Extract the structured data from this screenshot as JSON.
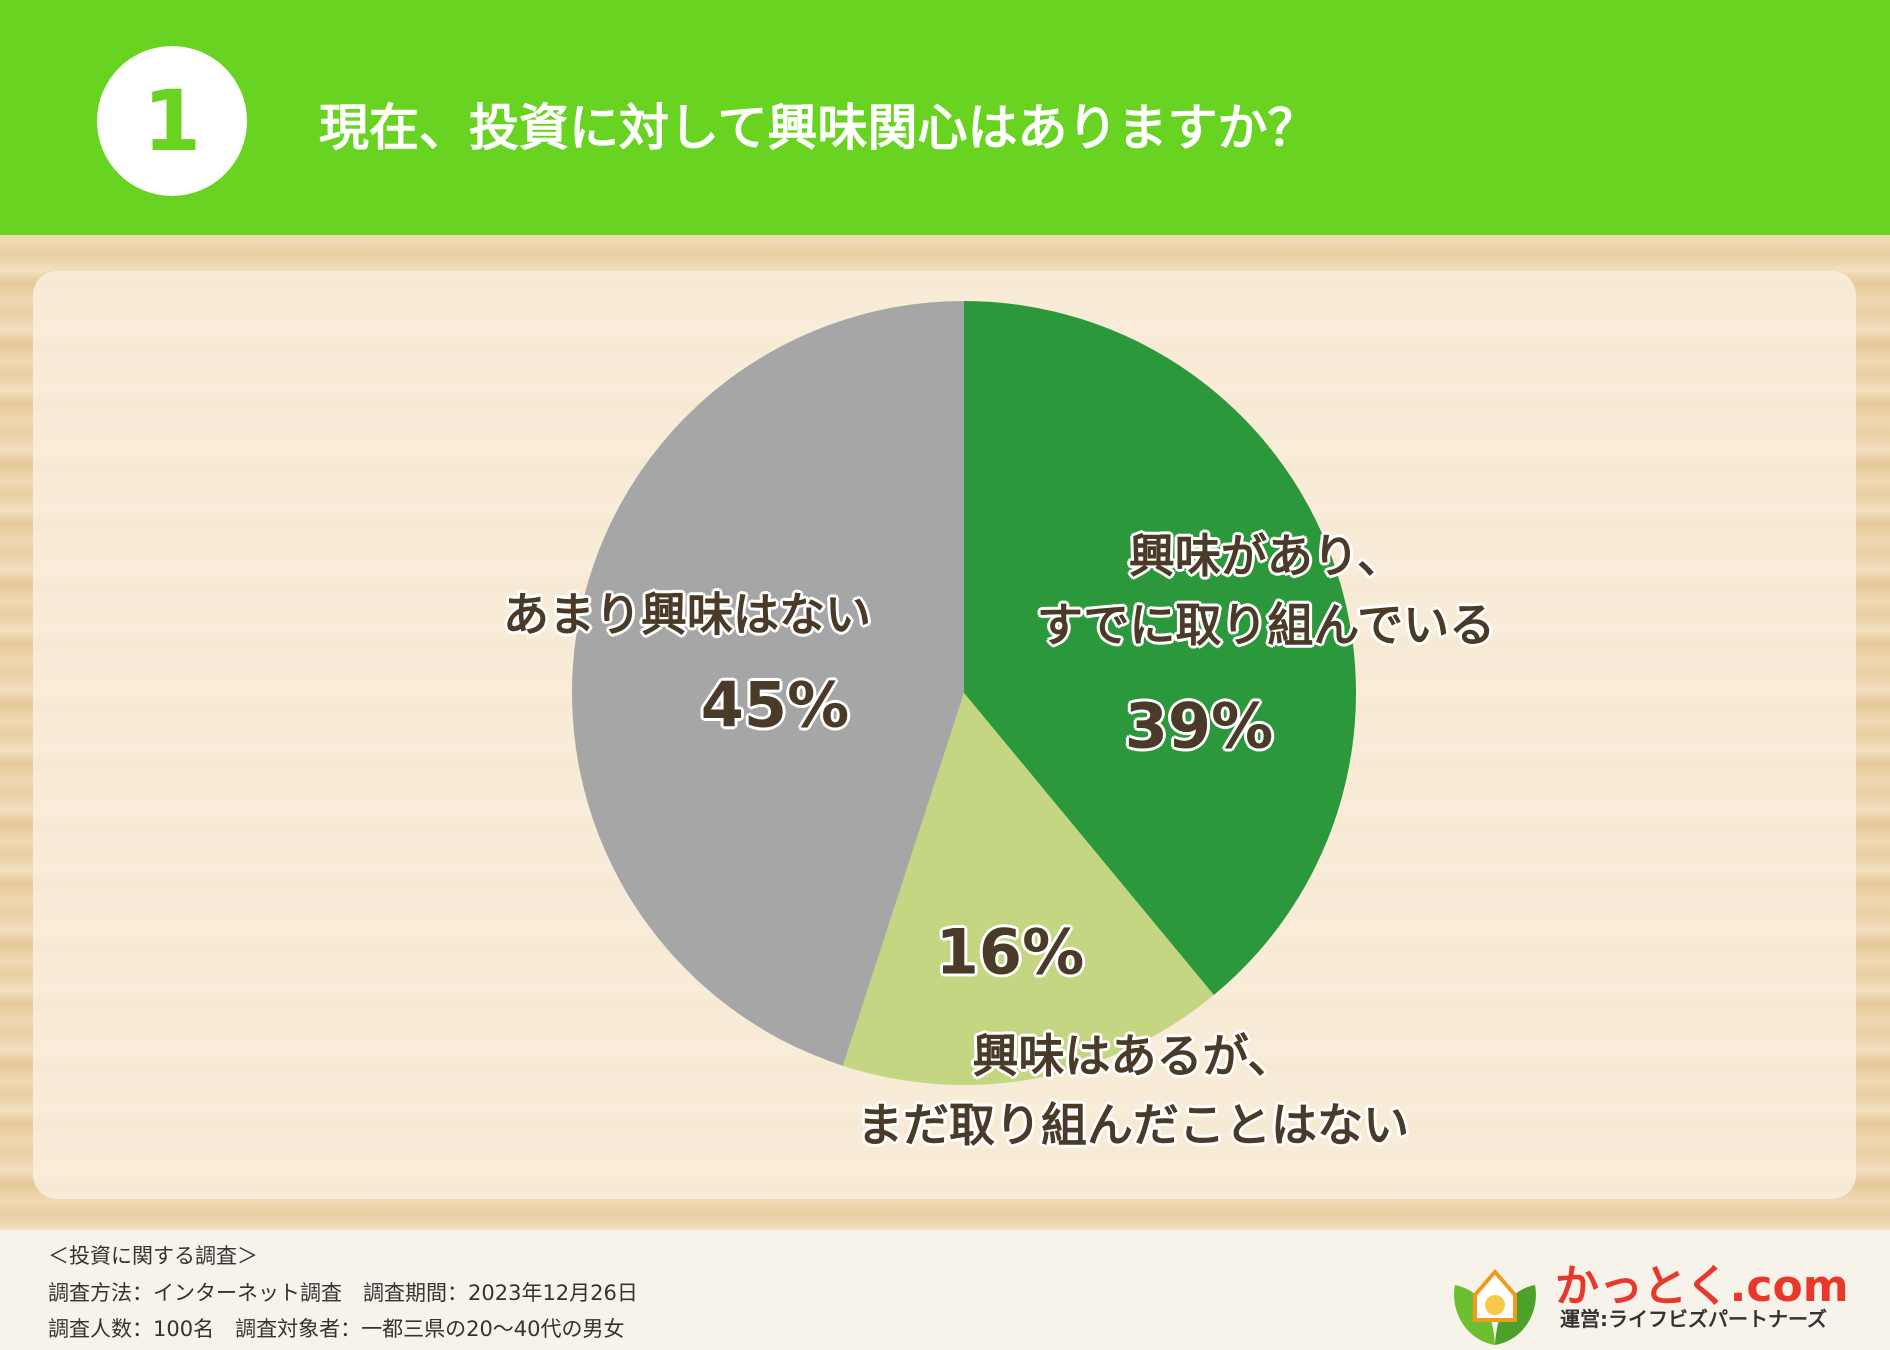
{
  "header": {
    "number": "1",
    "title": "現在、投資に対して興味関心はありますか？"
  },
  "chart_data": {
    "type": "pie",
    "categories": [
      "興味があり、\nすでに取り組んでいる",
      "興味はあるが、\nまだ取り組んだことはない",
      "あまり興味はない"
    ],
    "values": [
      39,
      16,
      45
    ],
    "value_labels": [
      "39%",
      "16%",
      "45%"
    ],
    "colors": [
      "#2b983b",
      "#c4d682",
      "#a6a6a6"
    ]
  },
  "footer": {
    "lines": [
      "＜投資に関する調査＞",
      "調査方法：インターネット調査　調査期間：2023年12月26日",
      "調査人数：100名　調査対象者：一都三県の20〜40代の男女"
    ],
    "logo": "かっとく.com",
    "logo_sub": "運営:ライフビズパートナーズ"
  }
}
